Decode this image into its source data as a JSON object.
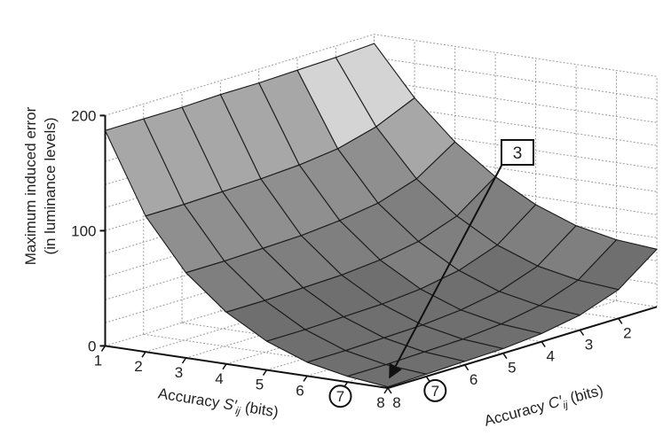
{
  "chart_data": {
    "type": "surface3d",
    "title": "",
    "zlabel_line1": "Maximum induced error",
    "zlabel_line2": "(in luminance levels)",
    "x_axis": {
      "label_prefix": "Accuracy ",
      "label_var": "S′",
      "label_sub": "ij",
      "label_suffix": " (bits)",
      "ticks": [
        "1",
        "2",
        "3",
        "4",
        "5",
        "6",
        "7",
        "8"
      ],
      "highlighted_tick": "7"
    },
    "y_axis": {
      "label_prefix": "Accuracy ",
      "label_var": "C′",
      "label_sub": "ij",
      "label_suffix": " (bits)",
      "ticks": [
        "2",
        "3",
        "4",
        "5",
        "6",
        "7",
        "8"
      ],
      "highlighted_tick": "7"
    },
    "z_axis": {
      "ticks": [
        "0",
        "100",
        "200"
      ],
      "zlim": [
        0,
        200
      ]
    },
    "grid": true,
    "band_colors": [
      "#6f6f6f",
      "#7f7f7f",
      "#8f8f8f",
      "#a7a7a7",
      "#d4d4d4"
    ],
    "annotation": {
      "label": "3"
    },
    "surface": {
      "s_bits": [
        1,
        2,
        3,
        4,
        5,
        6,
        7,
        8
      ],
      "c_bits": [
        1,
        2,
        3,
        4,
        5,
        6,
        7,
        8
      ],
      "z_values": [
        [
          192,
          190,
          189,
          188,
          188,
          187,
          187,
          187
        ],
        [
          150,
          135,
          126,
          122,
          120,
          119,
          118,
          118
        ],
        [
          117,
          95,
          84,
          79,
          76,
          75,
          74,
          74
        ],
        [
          92,
          68,
          56,
          50,
          47,
          46,
          45,
          45
        ],
        [
          73,
          48,
          36,
          30,
          27,
          26,
          25,
          25
        ],
        [
          60,
          35,
          23,
          17,
          14,
          13,
          12,
          12
        ],
        [
          53,
          28,
          16,
          10,
          7,
          6,
          5,
          5
        ],
        [
          50,
          25,
          13,
          7,
          4,
          3,
          2,
          1
        ]
      ]
    }
  }
}
